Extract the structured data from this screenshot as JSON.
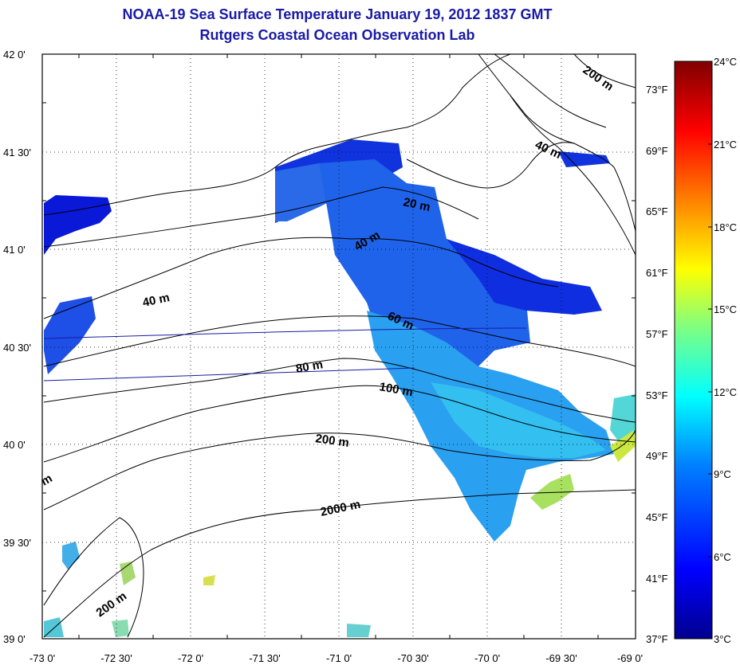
{
  "title": "NOAA-19 Sea Surface Temperature January 19, 2012 1837 GMT",
  "subtitle": "Rutgers Coastal Ocean Observation Lab",
  "map": {
    "lon_range": [
      -73.0,
      -69.0
    ],
    "lat_range": [
      39.0,
      42.0
    ],
    "x_ticks": [
      "-73 0'",
      "-72 30'",
      "-72 0'",
      "-71 30'",
      "-71 0'",
      "-70 30'",
      "-70 0'",
      "-69 30'",
      "-69 0'"
    ],
    "y_ticks": [
      "42 0'",
      "41 30'",
      "41 0'",
      "40 30'",
      "40 0'",
      "39 30'",
      "39 0'"
    ],
    "grid": "dotted",
    "contour_labels": [
      "20 m",
      "40 m",
      "40 m",
      "40 m",
      "60 m",
      "80 m",
      "100 m",
      "200 m",
      "200 m",
      "200 m",
      "2000 m",
      "m"
    ]
  },
  "colorbar": {
    "celsius_labels": [
      "24°C",
      "21°C",
      "18°C",
      "15°C",
      "12°C",
      "9°C",
      "6°C",
      "3°C"
    ],
    "fahrenheit_labels": [
      "73°F",
      "69°F",
      "65°F",
      "61°F",
      "57°F",
      "53°F",
      "49°F",
      "45°F",
      "41°F",
      "37°F"
    ],
    "colors": [
      "#00008f",
      "#0000ff",
      "#0080ff",
      "#00ffff",
      "#80ff80",
      "#ffff00",
      "#ff8000",
      "#ff0000",
      "#800000"
    ]
  }
}
